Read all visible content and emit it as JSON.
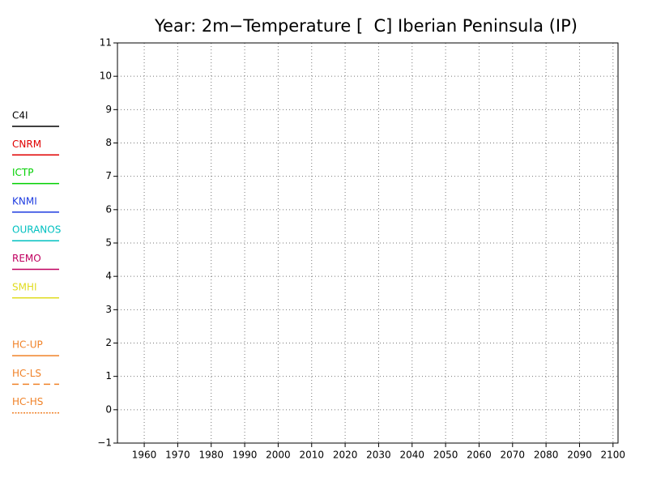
{
  "chart_data": {
    "type": "line",
    "title": "Year: 2m−Temperature [  C] Iberian Peninsula (IP)",
    "xlim": [
      1952,
      2101.5
    ],
    "xticks": [
      1960,
      1970,
      1980,
      1990,
      2000,
      2010,
      2020,
      2030,
      2040,
      2050,
      2060,
      2070,
      2080,
      2090,
      2100
    ],
    "ylim": [
      -1,
      11
    ],
    "yticks": [
      {
        "value": -1,
        "label": "−1"
      },
      0,
      1,
      2,
      3,
      4,
      5,
      6,
      7,
      8,
      9,
      10,
      11
    ],
    "grid": true,
    "legend": "left",
    "series": [
      {
        "name": "C4I",
        "color": "#000000",
        "dash": "solid"
      },
      {
        "name": "CNRM",
        "color": "#e00000",
        "dash": "solid"
      },
      {
        "name": "ICTP",
        "color": "#00d000",
        "dash": "solid"
      },
      {
        "name": "KNMI",
        "color": "#1e3ce0",
        "dash": "solid"
      },
      {
        "name": "OURANOS",
        "color": "#00c0c0",
        "dash": "solid"
      },
      {
        "name": "REMO",
        "color": "#c00060",
        "dash": "solid"
      },
      {
        "name": "SMHI",
        "color": "#e0dc20",
        "dash": "solid"
      },
      {
        "name": "HC-UP",
        "color": "#f08228",
        "dash": "solid"
      },
      {
        "name": "HC-LS",
        "color": "#f08228",
        "dash": "dashed"
      },
      {
        "name": "HC-HS",
        "color": "#f08228",
        "dash": "dotted"
      }
    ]
  }
}
